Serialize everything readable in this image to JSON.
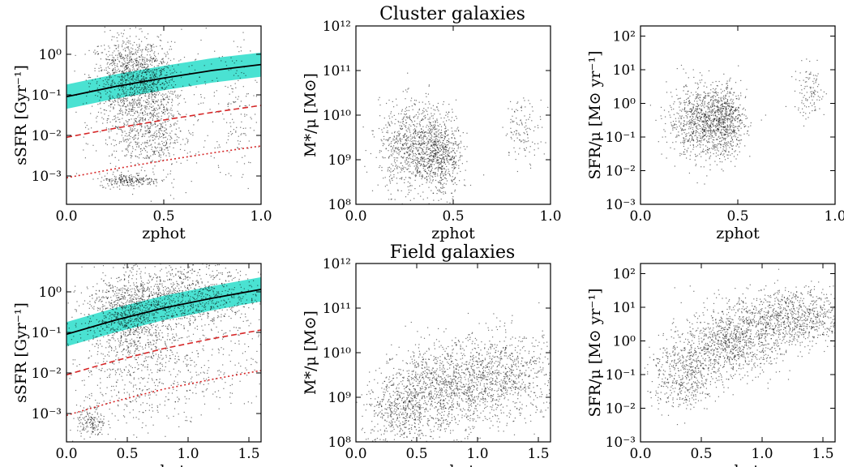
{
  "titles": [
    "Cluster galaxies",
    "Field galaxies"
  ],
  "chart_data": [
    {
      "id": "cluster-ssfr",
      "type": "scatter",
      "log_y": true,
      "xlim": [
        0,
        1.0
      ],
      "ylim": [
        0.0002,
        5
      ],
      "xticks": [
        "0.0",
        "0.5",
        "1.0"
      ],
      "xlabel": "zphot",
      "ylabel": "sSFR [Gyr⁻¹]",
      "yticks": [
        {
          "v": 0.001,
          "label": "10⁻³"
        },
        {
          "v": 0.01,
          "label": "10⁻²"
        },
        {
          "v": 0.1,
          "label": "10⁻¹"
        },
        {
          "v": 1,
          "label": "10⁰"
        }
      ],
      "curves": [
        {
          "name": "main-sequence",
          "color": "#000000",
          "style": "solid",
          "x": [
            0,
            0.25,
            0.5,
            0.75,
            1.0
          ],
          "y": [
            0.09,
            0.16,
            0.26,
            0.4,
            0.56
          ]
        },
        {
          "name": "ms-band-upper",
          "color": "#40e0d0",
          "style": "band-upper",
          "x": [
            0,
            0.25,
            0.5,
            0.75,
            1.0
          ],
          "y": [
            0.18,
            0.32,
            0.52,
            0.8,
            1.1
          ]
        },
        {
          "name": "ms-band-lower",
          "color": "#40e0d0",
          "style": "band-lower",
          "x": [
            0,
            0.25,
            0.5,
            0.75,
            1.0
          ],
          "y": [
            0.045,
            0.08,
            0.13,
            0.2,
            0.28
          ]
        },
        {
          "name": "threshold-dashed",
          "color": "#d62728",
          "style": "dashed",
          "x": [
            0,
            0.25,
            0.5,
            0.75,
            1.0
          ],
          "y": [
            0.009,
            0.015,
            0.024,
            0.037,
            0.055
          ]
        },
        {
          "name": "threshold-dotted",
          "color": "#d62728",
          "style": "dotted",
          "x": [
            0,
            0.25,
            0.5,
            0.75,
            1.0
          ],
          "y": [
            0.0009,
            0.0015,
            0.0024,
            0.0037,
            0.0055
          ]
        }
      ],
      "clumps": [
        {
          "x": 0.3,
          "y": 0.3,
          "sx": 0.09,
          "sy": 0.5,
          "n": 650
        },
        {
          "x": 0.42,
          "y": 0.25,
          "sx": 0.07,
          "sy": 0.45,
          "n": 450
        },
        {
          "x": 0.35,
          "y": 0.02,
          "sx": 0.1,
          "sy": 0.55,
          "n": 380
        },
        {
          "x": 0.45,
          "y": 0.01,
          "sx": 0.06,
          "sy": 0.5,
          "n": 250
        },
        {
          "x": 0.32,
          "y": 0.0008,
          "sx": 0.08,
          "sy": 0.08,
          "n": 220
        },
        {
          "x": 0.88,
          "y": 0.05,
          "sx": 0.05,
          "sy": 0.9,
          "n": 120
        },
        {
          "x": 0.5,
          "y": 0.05,
          "sx": 0.2,
          "sy": 1.0,
          "n": 250
        }
      ]
    },
    {
      "id": "cluster-mass",
      "type": "scatter",
      "log_y": true,
      "xlim": [
        0,
        1.0
      ],
      "ylim": [
        100000000.0,
        1000000000000.0
      ],
      "xticks": [
        "0.0",
        "0.5",
        "1.0"
      ],
      "xlabel": "zphot",
      "ylabel": "M*/μ [M⊙]",
      "yticks": [
        {
          "v": 100000000.0,
          "label": "10⁸"
        },
        {
          "v": 1000000000.0,
          "label": "10⁹"
        },
        {
          "v": 10000000000.0,
          "label": "10¹⁰"
        },
        {
          "v": 100000000000.0,
          "label": "10¹¹"
        },
        {
          "v": 1000000000000.0,
          "label": "10¹²"
        }
      ],
      "clumps": [
        {
          "x": 0.3,
          "y": 2000000000.0,
          "sx": 0.09,
          "sy": 0.5,
          "n": 900
        },
        {
          "x": 0.44,
          "y": 1200000000.0,
          "sx": 0.05,
          "sy": 0.45,
          "n": 500
        },
        {
          "x": 0.86,
          "y": 5000000000.0,
          "sx": 0.05,
          "sy": 0.35,
          "n": 120
        }
      ]
    },
    {
      "id": "cluster-sfr",
      "type": "scatter",
      "log_y": true,
      "xlim": [
        0,
        1.0
      ],
      "ylim": [
        0.001,
        200
      ],
      "xticks": [
        "0.0",
        "0.5",
        "1.0"
      ],
      "xlabel": "zphot",
      "ylabel": "SFR/μ [M⊙ yr⁻¹]",
      "yticks": [
        {
          "v": 0.001,
          "label": "10⁻³"
        },
        {
          "v": 0.01,
          "label": "10⁻²"
        },
        {
          "v": 0.1,
          "label": "10⁻¹"
        },
        {
          "v": 1,
          "label": "10⁰"
        },
        {
          "v": 10,
          "label": "10¹"
        },
        {
          "v": 100,
          "label": "10²"
        }
      ],
      "clumps": [
        {
          "x": 0.32,
          "y": 0.3,
          "sx": 0.09,
          "sy": 0.55,
          "n": 900
        },
        {
          "x": 0.44,
          "y": 0.3,
          "sx": 0.05,
          "sy": 0.5,
          "n": 450
        },
        {
          "x": 0.87,
          "y": 2,
          "sx": 0.04,
          "sy": 0.4,
          "n": 110
        }
      ]
    },
    {
      "id": "field-ssfr",
      "type": "scatter",
      "log_y": true,
      "xlim": [
        0,
        1.6
      ],
      "ylim": [
        0.0002,
        5
      ],
      "xticks": [
        "0.0",
        "0.5",
        "1.0",
        "1.5"
      ],
      "xlabel": "zphot",
      "ylabel": "sSFR [Gyr⁻¹]",
      "yticks": [
        {
          "v": 0.001,
          "label": "10⁻³"
        },
        {
          "v": 0.01,
          "label": "10⁻²"
        },
        {
          "v": 0.1,
          "label": "10⁻¹"
        },
        {
          "v": 1,
          "label": "10⁰"
        }
      ],
      "curves": [
        {
          "name": "main-sequence",
          "color": "#000000",
          "style": "solid",
          "x": [
            0,
            0.4,
            0.8,
            1.2,
            1.6
          ],
          "y": [
            0.09,
            0.2,
            0.4,
            0.7,
            1.15
          ]
        },
        {
          "name": "ms-band-upper",
          "color": "#40e0d0",
          "style": "band-upper",
          "x": [
            0,
            0.4,
            0.8,
            1.2,
            1.6
          ],
          "y": [
            0.18,
            0.4,
            0.8,
            1.4,
            2.3
          ]
        },
        {
          "name": "ms-band-lower",
          "color": "#40e0d0",
          "style": "band-lower",
          "x": [
            0,
            0.4,
            0.8,
            1.2,
            1.6
          ],
          "y": [
            0.045,
            0.1,
            0.2,
            0.35,
            0.58
          ]
        },
        {
          "name": "threshold-dashed",
          "color": "#d62728",
          "style": "dashed",
          "x": [
            0,
            0.4,
            0.8,
            1.2,
            1.6
          ],
          "y": [
            0.009,
            0.02,
            0.04,
            0.07,
            0.115
          ]
        },
        {
          "name": "threshold-dotted",
          "color": "#d62728",
          "style": "dotted",
          "x": [
            0,
            0.4,
            0.8,
            1.2,
            1.6
          ],
          "y": [
            0.0009,
            0.002,
            0.004,
            0.007,
            0.0115
          ]
        }
      ],
      "clumps": [
        {
          "x": 0.5,
          "y": 0.3,
          "sx": 0.18,
          "sy": 0.5,
          "n": 900
        },
        {
          "x": 1.0,
          "y": 0.8,
          "sx": 0.3,
          "sy": 0.45,
          "n": 900
        },
        {
          "x": 0.5,
          "y": 0.01,
          "sx": 0.3,
          "sy": 0.7,
          "n": 450
        },
        {
          "x": 1.1,
          "y": 0.03,
          "sx": 0.35,
          "sy": 0.8,
          "n": 300
        },
        {
          "x": 0.2,
          "y": 0.0006,
          "sx": 0.06,
          "sy": 0.2,
          "n": 160
        }
      ]
    },
    {
      "id": "field-mass",
      "type": "scatter",
      "log_y": true,
      "xlim": [
        0,
        1.6
      ],
      "ylim": [
        100000000.0,
        1000000000000.0
      ],
      "xticks": [
        "0.0",
        "0.5",
        "1.0",
        "1.5"
      ],
      "xlabel": "zphot",
      "ylabel": "M*/μ [M⊙]",
      "yticks": [
        {
          "v": 100000000.0,
          "label": "10⁸"
        },
        {
          "v": 1000000000.0,
          "label": "10⁹"
        },
        {
          "v": 10000000000.0,
          "label": "10¹⁰"
        },
        {
          "v": 100000000000.0,
          "label": "10¹¹"
        },
        {
          "v": 1000000000000.0,
          "label": "10¹²"
        }
      ],
      "clumps": [
        {
          "x": 0.35,
          "y": 500000000.0,
          "sx": 0.15,
          "sy": 0.45,
          "n": 500
        },
        {
          "x": 0.7,
          "y": 1500000000.0,
          "sx": 0.2,
          "sy": 0.5,
          "n": 900
        },
        {
          "x": 1.2,
          "y": 3000000000.0,
          "sx": 0.25,
          "sy": 0.5,
          "n": 900
        }
      ]
    },
    {
      "id": "field-sfr",
      "type": "scatter",
      "log_y": true,
      "xlim": [
        0,
        1.6
      ],
      "ylim": [
        0.001,
        200
      ],
      "xticks": [
        "0.0",
        "0.5",
        "1.0",
        "1.5"
      ],
      "xlabel": "zphot",
      "ylabel": "SFR/μ [M⊙ yr⁻¹]",
      "yticks": [
        {
          "v": 0.001,
          "label": "10⁻³"
        },
        {
          "v": 0.01,
          "label": "10⁻²"
        },
        {
          "v": 0.1,
          "label": "10⁻¹"
        },
        {
          "v": 1,
          "label": "10⁰"
        },
        {
          "v": 10,
          "label": "10¹"
        },
        {
          "v": 100,
          "label": "10²"
        }
      ],
      "clumps": [
        {
          "x": 0.35,
          "y": 0.1,
          "sx": 0.15,
          "sy": 0.5,
          "n": 500
        },
        {
          "x": 0.75,
          "y": 1.0,
          "sx": 0.2,
          "sy": 0.5,
          "n": 900
        },
        {
          "x": 1.25,
          "y": 5,
          "sx": 0.25,
          "sy": 0.45,
          "n": 900
        }
      ]
    }
  ]
}
